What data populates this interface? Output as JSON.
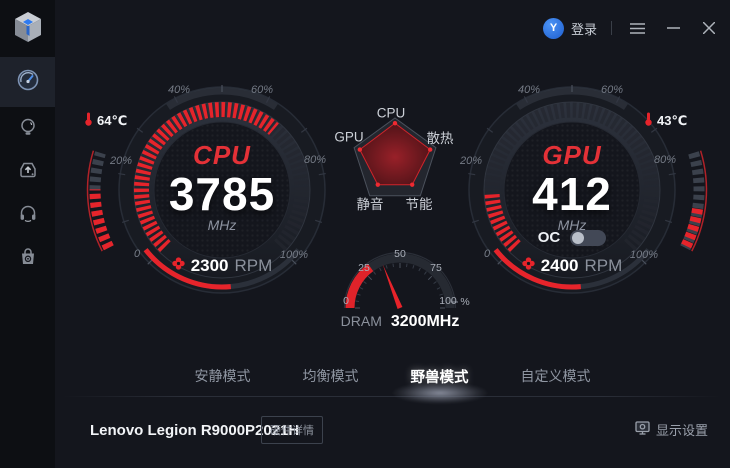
{
  "titlebar": {
    "login_label": "登录"
  },
  "sidebar": {
    "items": [
      {
        "id": "dashboard",
        "icon": "speedometer-icon",
        "active": true
      },
      {
        "id": "lighting",
        "icon": "lightbulb-icon",
        "active": false
      },
      {
        "id": "update",
        "icon": "update-drive-icon",
        "active": false
      },
      {
        "id": "audio",
        "icon": "headphones-icon",
        "active": false
      },
      {
        "id": "store",
        "icon": "store-bag-icon",
        "active": false
      }
    ]
  },
  "cpu_gauge": {
    "title": "CPU",
    "value": "3785",
    "unit": "MHz",
    "temperature": "64℃",
    "fan_rpm": "2300",
    "fan_unit": "RPM",
    "load_percent": 65,
    "fan_percent": 55,
    "temp_percent": 62,
    "scale_labels": [
      "0",
      "20%",
      "40%",
      "60%",
      "80%",
      "100%"
    ]
  },
  "gpu_gauge": {
    "title": "GPU",
    "value": "412",
    "unit": "MHz",
    "temperature": "43℃",
    "fan_rpm": "2400",
    "fan_unit": "RPM",
    "oc_label": "OC",
    "oc_enabled": false,
    "load_percent": 16,
    "fan_percent": 55,
    "temp_percent": 42,
    "scale_labels": [
      "0",
      "20%",
      "40%",
      "60%",
      "80%",
      "100%"
    ]
  },
  "radar": {
    "axes": [
      "CPU",
      "散热",
      "节能",
      "静音",
      "GPU"
    ],
    "values": [
      0.88,
      0.86,
      0.68,
      0.68,
      0.86
    ]
  },
  "dram_gauge": {
    "label": "DRAM",
    "value": "3200MHz",
    "tick_labels": [
      "0",
      "25",
      "50",
      "75",
      "100"
    ],
    "unit_label": "%",
    "needle_percent": 38,
    "arc_percent": 30
  },
  "tabs": [
    {
      "label": "安静模式",
      "active": false
    },
    {
      "label": "均衡模式",
      "active": false
    },
    {
      "label": "野兽模式",
      "active": true
    },
    {
      "label": "自定义模式",
      "active": false
    }
  ],
  "footer": {
    "device_name": "Lenovo Legion R9000P2021H",
    "hardware_details_label": "硬件详情",
    "display_settings_label": "显示设置"
  },
  "colors": {
    "accent_red": "#e6242b",
    "background": "#14161d",
    "sidebar": "#0d0f13"
  }
}
